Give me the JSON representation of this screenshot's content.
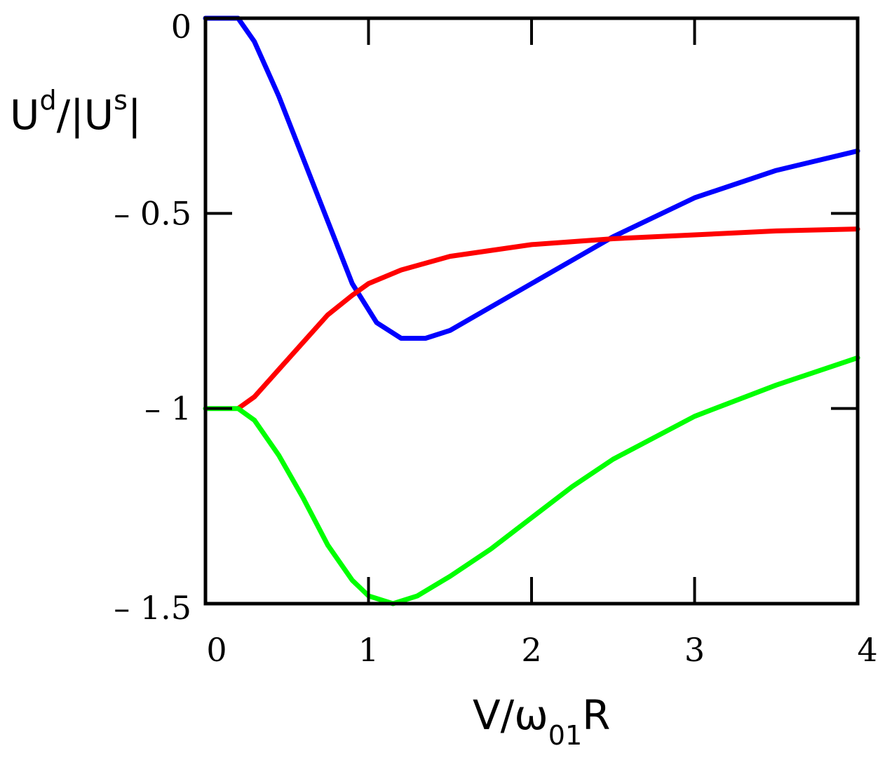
{
  "chart_data": {
    "type": "line",
    "xlabel": {
      "base": "V/ω",
      "sub": "01",
      "tail": "R"
    },
    "ylabel": {
      "base1": "U",
      "sup1": "d",
      "mid": "/|U",
      "sup2": "s",
      "tail": "|"
    },
    "xlim": [
      0,
      4
    ],
    "ylim": [
      -1.5,
      0
    ],
    "xticks": [
      0,
      1,
      2,
      3,
      4
    ],
    "xtick_labels": [
      "0",
      "1",
      "2",
      "3",
      "4"
    ],
    "yticks": [
      0,
      -0.5,
      -1,
      -1.5
    ],
    "ytick_labels": [
      "0",
      "– 0.5",
      "– 1",
      "– 1.5"
    ],
    "grid": false,
    "series": [
      {
        "color": "#0000ff",
        "x": [
          0,
          0.2,
          0.3,
          0.45,
          0.6,
          0.75,
          0.9,
          1.05,
          1.2,
          1.35,
          1.5,
          1.75,
          2.0,
          2.25,
          2.5,
          3.0,
          3.5,
          4.0
        ],
        "y": [
          0,
          0,
          -0.06,
          -0.2,
          -0.36,
          -0.52,
          -0.68,
          -0.78,
          -0.82,
          -0.82,
          -0.8,
          -0.74,
          -0.68,
          -0.62,
          -0.56,
          -0.46,
          -0.39,
          -0.34
        ]
      },
      {
        "color": "#ff0000",
        "x": [
          0.2,
          0.3,
          0.45,
          0.6,
          0.75,
          0.9,
          1.0,
          1.2,
          1.5,
          2.0,
          2.5,
          3.0,
          3.5,
          4.0
        ],
        "y": [
          -1,
          -0.97,
          -0.9,
          -0.83,
          -0.76,
          -0.71,
          -0.68,
          -0.645,
          -0.61,
          -0.58,
          -0.565,
          -0.555,
          -0.545,
          -0.54
        ]
      },
      {
        "color": "#00ff00",
        "x": [
          0,
          0.2,
          0.3,
          0.45,
          0.6,
          0.75,
          0.9,
          1.0,
          1.15,
          1.3,
          1.5,
          1.75,
          2.0,
          2.25,
          2.5,
          3.0,
          3.5,
          4.0
        ],
        "y": [
          -1,
          -1,
          -1.03,
          -1.12,
          -1.23,
          -1.35,
          -1.44,
          -1.48,
          -1.5,
          -1.48,
          -1.43,
          -1.36,
          -1.28,
          -1.2,
          -1.13,
          -1.02,
          -0.94,
          -0.87
        ]
      }
    ]
  }
}
